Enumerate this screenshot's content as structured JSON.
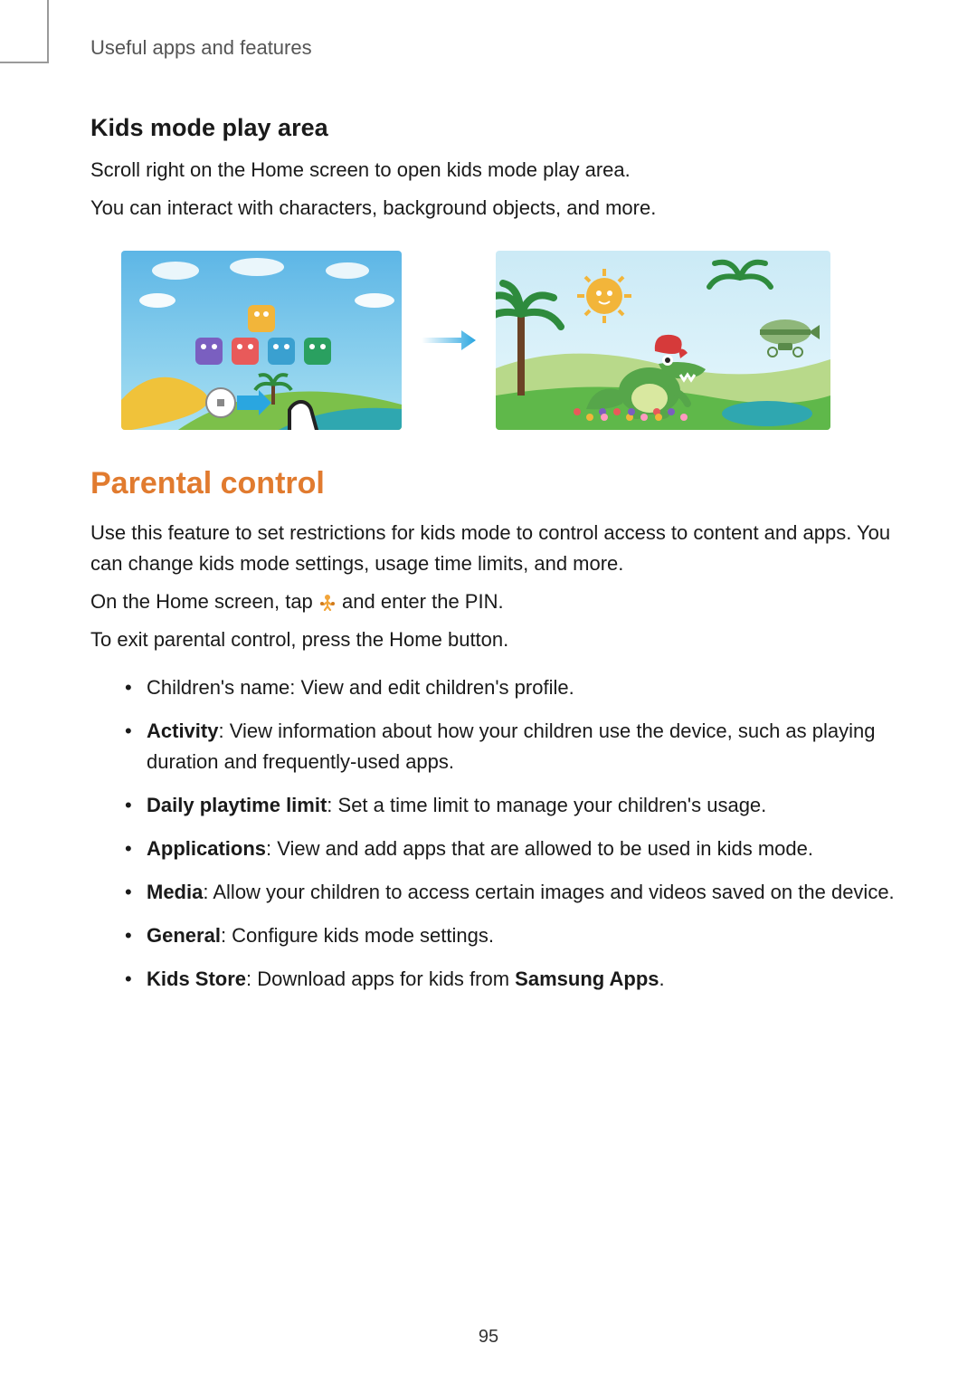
{
  "chapter": "Useful apps and features",
  "sec1": {
    "heading": "Kids mode play area",
    "p1": "Scroll right on the Home screen to open kids mode play area.",
    "p2": "You can interact with characters, background objects, and more."
  },
  "sec2": {
    "heading": "Parental control",
    "heading_color": "#e17b2f",
    "p1": "Use this feature to set restrictions for kids mode to control access to content and apps. You can change kids mode settings, usage time limits, and more.",
    "p2a": "On the Home screen, tap ",
    "p2b": " and enter the PIN.",
    "p3": "To exit parental control, press the Home button.",
    "bullets": [
      {
        "bold": "",
        "plain": "Children's name: View and edit children's profile."
      },
      {
        "bold": "Activity",
        "plain": ": View information about how your children use the device, such as playing duration and frequently-used apps."
      },
      {
        "bold": "Daily playtime limit",
        "plain": ": Set a time limit to manage your children's usage."
      },
      {
        "bold": "Applications",
        "plain": ": View and add apps that are allowed to be used in kids mode."
      },
      {
        "bold": "Media",
        "plain": ": Allow your children to access certain images and videos saved on the device."
      },
      {
        "bold": "General",
        "plain": ": Configure kids mode settings."
      },
      {
        "bold": "Kids Store",
        "plain": ": Download apps for kids from ",
        "bold_tail": "Samsung Apps",
        "tail": "."
      }
    ]
  },
  "page_number": "95",
  "figure": {
    "arrow_color": "#2aa6e0",
    "shot1": {
      "sky_top": "#5db6e6",
      "sky_bottom": "#a8e0f2",
      "hill1": "#f0c23a",
      "hill2": "#7cc04a",
      "water": "#2fa7b0",
      "icon_colors": [
        "#7a5fc0",
        "#e85a5a",
        "#3aa0d0",
        "#2aa060"
      ],
      "top_icon_color": "#f2b53a",
      "slider_arrow_color": "#2aa6e0",
      "palm_color": "#6b4226",
      "leaf_color": "#2e8b3d"
    },
    "shot2": {
      "sky_top": "#cbeaf6",
      "sky_bottom": "#e6f7fc",
      "grass": "#5fb84a",
      "water": "#2fa7b0",
      "croc_body": "#56a64a",
      "croc_belly": "#d9e8a0",
      "hat_color": "#d63a3a",
      "tooth_color": "#ffffff",
      "sun_color": "#f2b53a",
      "blimp_body": "#8fb77a",
      "blimp_accent": "#5a8a4a",
      "palm_color": "#6b4226",
      "leaf_color": "#2e8b3d",
      "flower_colors": [
        "#e85a5a",
        "#f2b53a",
        "#7a5fc0",
        "#ff9ac0"
      ]
    }
  },
  "inline_icon": {
    "body": "#f2a53a",
    "stroke": "#d07a1a"
  }
}
